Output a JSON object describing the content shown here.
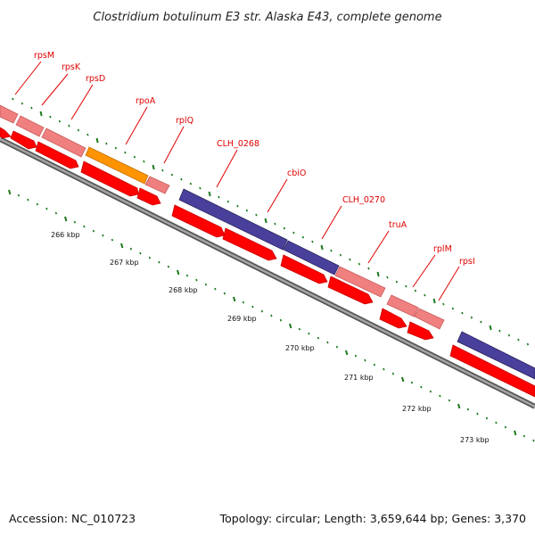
{
  "title": "Clostridium botulinum E3 str. Alaska E43, complete genome",
  "footer": {
    "accession": "Accession: NC_010723",
    "topology": "Topology: circular; Length: 3,659,644 bp; Genes: 3,370"
  },
  "colors": {
    "gene_red": "#ff0000",
    "gene_red_dark": "#c80000",
    "pink": "#f08080",
    "pink_dark": "#c85a5a",
    "orange": "#ff9400",
    "orange_dark": "#c46e00",
    "purple": "#48409a",
    "purple_dark": "#2a2460",
    "label_red": "#e00000",
    "tick_green": "#1a7a1a",
    "backbone": "#8a8a8a"
  },
  "ticks": [
    {
      "label": "266 kbp"
    },
    {
      "label": "267 kbp"
    },
    {
      "label": "268 kbp"
    },
    {
      "label": "269 kbp"
    },
    {
      "label": "270 kbp"
    },
    {
      "label": "271 kbp"
    },
    {
      "label": "272 kbp"
    },
    {
      "label": "273 kbp"
    }
  ],
  "gene_labels": [
    {
      "name": "rpsM"
    },
    {
      "name": "rpsK"
    },
    {
      "name": "rpsD"
    },
    {
      "name": "rpoA"
    },
    {
      "name": "rplQ"
    },
    {
      "name": "CLH_0268"
    },
    {
      "name": "cbiO"
    },
    {
      "name": "CLH_0270"
    },
    {
      "name": "truA"
    },
    {
      "name": "rplM"
    },
    {
      "name": "rpsI"
    }
  ]
}
